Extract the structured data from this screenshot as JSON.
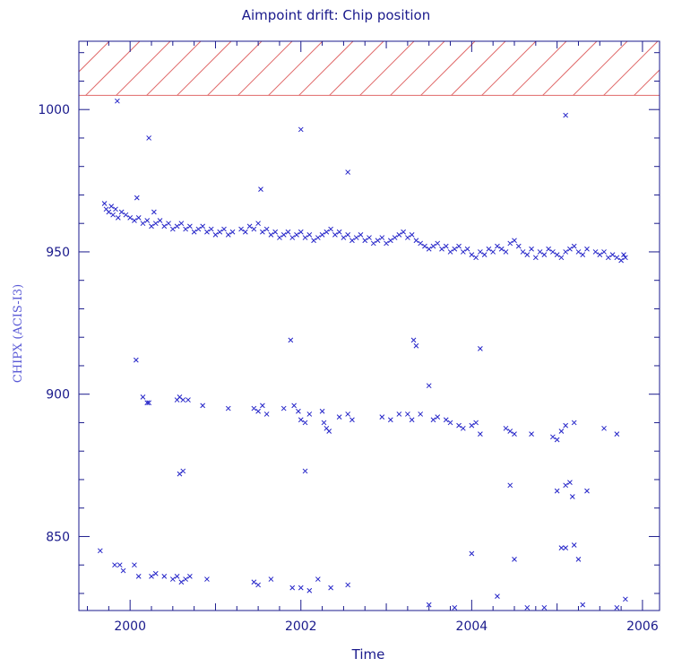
{
  "chart_data": {
    "type": "scatter",
    "title": "Aimpoint drift: Chip position",
    "xlabel": "Time",
    "ylabel": "CHIPX (ACIS-I3)",
    "xlim": [
      1999.4,
      2006.2
    ],
    "ylim": [
      824,
      1024
    ],
    "x_ticks": [
      2000,
      2002,
      2004,
      2006
    ],
    "x_tick_labels": [
      "2000",
      "2002",
      "2004",
      "2006"
    ],
    "y_ticks": [
      850,
      900,
      950,
      1000
    ],
    "y_tick_labels": [
      "850",
      "900",
      "950",
      "1000"
    ],
    "hatched_region": {
      "ymin": 1005,
      "ymax": 1024,
      "color": "#e06a6a"
    },
    "marker": "x",
    "marker_color": "#2424c8",
    "series": [
      {
        "points": [
          [
            1999.7,
            967
          ],
          [
            1999.72,
            965
          ],
          [
            1999.75,
            964
          ],
          [
            1999.78,
            966
          ],
          [
            1999.8,
            963
          ],
          [
            1999.83,
            965
          ],
          [
            1999.86,
            962
          ],
          [
            1999.9,
            964
          ],
          [
            1999.95,
            963
          ],
          [
            2000.0,
            962
          ],
          [
            2000.05,
            961
          ],
          [
            2000.1,
            962
          ],
          [
            2000.15,
            960
          ],
          [
            2000.2,
            961
          ],
          [
            2000.25,
            959
          ],
          [
            2000.3,
            960
          ],
          [
            2000.35,
            961
          ],
          [
            2000.4,
            959
          ],
          [
            2000.45,
            960
          ],
          [
            2000.5,
            958
          ],
          [
            2000.55,
            959
          ],
          [
            2000.6,
            960
          ],
          [
            2000.65,
            958
          ],
          [
            2000.7,
            959
          ],
          [
            2000.75,
            957
          ],
          [
            2000.8,
            958
          ],
          [
            2000.85,
            959
          ],
          [
            2000.9,
            957
          ],
          [
            2000.95,
            958
          ],
          [
            2001.0,
            956
          ],
          [
            2001.05,
            957
          ],
          [
            2001.1,
            958
          ],
          [
            2001.15,
            956
          ],
          [
            2001.2,
            957
          ],
          [
            2001.3,
            958
          ],
          [
            2001.35,
            957
          ],
          [
            2001.4,
            959
          ],
          [
            2001.45,
            958
          ],
          [
            2001.5,
            960
          ],
          [
            2001.55,
            957
          ],
          [
            2001.6,
            958
          ],
          [
            2001.65,
            956
          ],
          [
            2001.7,
            957
          ],
          [
            2001.75,
            955
          ],
          [
            2001.8,
            956
          ],
          [
            2001.85,
            957
          ],
          [
            2001.9,
            955
          ],
          [
            2001.95,
            956
          ],
          [
            2002.0,
            957
          ],
          [
            2002.05,
            955
          ],
          [
            2002.1,
            956
          ],
          [
            2002.15,
            954
          ],
          [
            2002.2,
            955
          ],
          [
            2002.25,
            956
          ],
          [
            2002.3,
            957
          ],
          [
            2002.35,
            958
          ],
          [
            2002.4,
            956
          ],
          [
            2002.45,
            957
          ],
          [
            2002.5,
            955
          ],
          [
            2002.55,
            956
          ],
          [
            2002.6,
            954
          ],
          [
            2002.65,
            955
          ],
          [
            2002.7,
            956
          ],
          [
            2002.75,
            954
          ],
          [
            2002.8,
            955
          ],
          [
            2002.85,
            953
          ],
          [
            2002.9,
            954
          ],
          [
            2002.95,
            955
          ],
          [
            2003.0,
            953
          ],
          [
            2003.05,
            954
          ],
          [
            2003.1,
            955
          ],
          [
            2003.15,
            956
          ],
          [
            2003.2,
            957
          ],
          [
            2003.25,
            955
          ],
          [
            2003.3,
            956
          ],
          [
            2003.35,
            954
          ],
          [
            2003.4,
            953
          ],
          [
            2003.45,
            952
          ],
          [
            2003.5,
            951
          ],
          [
            2003.55,
            952
          ],
          [
            2003.6,
            953
          ],
          [
            2003.65,
            951
          ],
          [
            2003.7,
            952
          ],
          [
            2003.75,
            950
          ],
          [
            2003.8,
            951
          ],
          [
            2003.85,
            952
          ],
          [
            2003.9,
            950
          ],
          [
            2003.95,
            951
          ],
          [
            2004.0,
            949
          ],
          [
            2004.05,
            948
          ],
          [
            2004.1,
            950
          ],
          [
            2004.15,
            949
          ],
          [
            2004.2,
            951
          ],
          [
            2004.25,
            950
          ],
          [
            2004.3,
            952
          ],
          [
            2004.35,
            951
          ],
          [
            2004.4,
            950
          ],
          [
            2004.45,
            953
          ],
          [
            2004.5,
            954
          ],
          [
            2004.55,
            952
          ],
          [
            2004.6,
            950
          ],
          [
            2004.65,
            949
          ],
          [
            2004.7,
            951
          ],
          [
            2004.75,
            948
          ],
          [
            2004.8,
            950
          ],
          [
            2004.85,
            949
          ],
          [
            2004.9,
            951
          ],
          [
            2004.95,
            950
          ],
          [
            2005.0,
            949
          ],
          [
            2005.05,
            948
          ],
          [
            2005.1,
            950
          ],
          [
            2005.15,
            951
          ],
          [
            2005.2,
            952
          ],
          [
            2005.25,
            950
          ],
          [
            2005.3,
            949
          ],
          [
            2005.35,
            951
          ],
          [
            2005.45,
            950
          ],
          [
            2005.5,
            949
          ],
          [
            2005.55,
            950
          ],
          [
            2005.6,
            948
          ],
          [
            2005.65,
            949
          ],
          [
            2005.7,
            948
          ],
          [
            2005.75,
            947
          ],
          [
            2005.78,
            949
          ],
          [
            2005.8,
            948
          ],
          [
            1999.85,
            1003
          ],
          [
            2000.22,
            990
          ],
          [
            2000.08,
            969
          ],
          [
            2000.28,
            964
          ],
          [
            2001.53,
            972
          ],
          [
            2002.0,
            993
          ],
          [
            2002.55,
            978
          ],
          [
            2005.1,
            998
          ],
          [
            2000.07,
            912
          ],
          [
            2000.15,
            899
          ],
          [
            2000.2,
            897
          ],
          [
            2000.22,
            897
          ],
          [
            2000.55,
            898
          ],
          [
            2000.58,
            899
          ],
          [
            2000.62,
            898
          ],
          [
            2000.68,
            898
          ],
          [
            2000.85,
            896
          ],
          [
            2001.15,
            895
          ],
          [
            2001.45,
            895
          ],
          [
            2001.5,
            894
          ],
          [
            2001.55,
            896
          ],
          [
            2001.6,
            893
          ],
          [
            2001.8,
            895
          ],
          [
            2001.92,
            896
          ],
          [
            2001.97,
            894
          ],
          [
            2002.0,
            891
          ],
          [
            2002.05,
            890
          ],
          [
            2002.1,
            893
          ],
          [
            2002.25,
            894
          ],
          [
            2002.27,
            890
          ],
          [
            2002.3,
            888
          ],
          [
            2002.33,
            887
          ],
          [
            2002.45,
            892
          ],
          [
            2002.55,
            893
          ],
          [
            2002.6,
            891
          ],
          [
            2002.95,
            892
          ],
          [
            2003.05,
            891
          ],
          [
            2003.15,
            893
          ],
          [
            2003.25,
            893
          ],
          [
            2003.3,
            891
          ],
          [
            2003.4,
            893
          ],
          [
            2003.5,
            903
          ],
          [
            2003.55,
            891
          ],
          [
            2003.6,
            892
          ],
          [
            2003.7,
            891
          ],
          [
            2003.75,
            890
          ],
          [
            2003.85,
            889
          ],
          [
            2003.9,
            888
          ],
          [
            2004.0,
            889
          ],
          [
            2004.05,
            890
          ],
          [
            2004.1,
            886
          ],
          [
            2004.4,
            888
          ],
          [
            2004.45,
            887
          ],
          [
            2004.5,
            886
          ],
          [
            2004.7,
            886
          ],
          [
            2004.95,
            885
          ],
          [
            2005.0,
            884
          ],
          [
            2005.05,
            887
          ],
          [
            2005.1,
            889
          ],
          [
            2005.2,
            890
          ],
          [
            2005.55,
            888
          ],
          [
            2005.7,
            886
          ],
          [
            2001.88,
            919
          ],
          [
            2003.32,
            919
          ],
          [
            2003.35,
            917
          ],
          [
            2004.1,
            916
          ],
          [
            2002.05,
            873
          ],
          [
            2000.58,
            872
          ],
          [
            2000.62,
            873
          ],
          [
            2004.45,
            868
          ],
          [
            2005.0,
            866
          ],
          [
            2005.1,
            868
          ],
          [
            2005.15,
            869
          ],
          [
            2005.18,
            864
          ],
          [
            2005.35,
            866
          ],
          [
            1999.65,
            845
          ],
          [
            1999.82,
            840
          ],
          [
            1999.88,
            840
          ],
          [
            1999.92,
            838
          ],
          [
            2000.05,
            840
          ],
          [
            2000.1,
            836
          ],
          [
            2000.25,
            836
          ],
          [
            2000.3,
            837
          ],
          [
            2000.4,
            836
          ],
          [
            2000.5,
            835
          ],
          [
            2000.55,
            836
          ],
          [
            2000.6,
            834
          ],
          [
            2000.65,
            835
          ],
          [
            2000.7,
            836
          ],
          [
            2000.9,
            835
          ],
          [
            2001.45,
            834
          ],
          [
            2001.5,
            833
          ],
          [
            2001.65,
            835
          ],
          [
            2001.9,
            832
          ],
          [
            2002.0,
            832
          ],
          [
            2002.1,
            831
          ],
          [
            2002.2,
            835
          ],
          [
            2002.35,
            832
          ],
          [
            2002.55,
            833
          ],
          [
            2004.0,
            844
          ],
          [
            2004.3,
            829
          ],
          [
            2004.5,
            842
          ],
          [
            2004.65,
            825
          ],
          [
            2004.85,
            825
          ],
          [
            2005.05,
            846
          ],
          [
            2005.1,
            846
          ],
          [
            2005.2,
            847
          ],
          [
            2005.25,
            842
          ],
          [
            2005.3,
            826
          ],
          [
            2005.7,
            825
          ],
          [
            2005.8,
            828
          ],
          [
            2003.5,
            826
          ],
          [
            2003.8,
            825
          ]
        ]
      }
    ]
  }
}
